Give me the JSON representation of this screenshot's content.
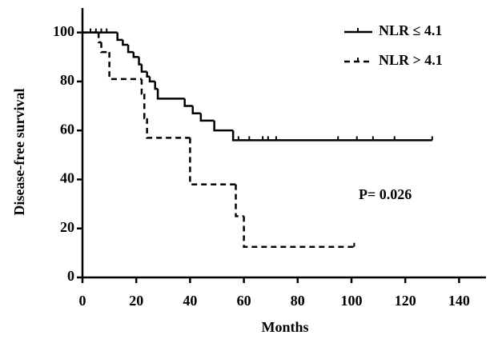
{
  "chart_data": {
    "type": "step",
    "xlabel": "Months",
    "ylabel": "Disease-free survival",
    "xlim": [
      0,
      150
    ],
    "ylim": [
      0,
      110
    ],
    "xticks": [
      0,
      20,
      40,
      60,
      80,
      100,
      120,
      140
    ],
    "yticks": [
      0,
      20,
      40,
      60,
      80,
      100
    ],
    "annotation": "P= 0.026",
    "legend": "top-right",
    "series": [
      {
        "name": "NLR ≤ 4.1",
        "color": "#000000",
        "dash": false,
        "x": [
          0,
          13,
          15,
          17,
          19,
          21,
          22,
          24,
          25,
          27,
          28,
          38,
          41,
          44,
          49,
          56,
          130
        ],
        "values": [
          100,
          97,
          95,
          92,
          90,
          87,
          84,
          82,
          80,
          77,
          73,
          70,
          67,
          64,
          60,
          56,
          56
        ],
        "censor_x": [
          3,
          5,
          7,
          9,
          58,
          62,
          67,
          69,
          72,
          95,
          102,
          108,
          116,
          130
        ],
        "censor_y": [
          100,
          100,
          100,
          100,
          56,
          56,
          56,
          56,
          56,
          56,
          56,
          56,
          56,
          56
        ]
      },
      {
        "name": "NLR > 4.1",
        "color": "#000000",
        "dash": true,
        "x": [
          0,
          6,
          7,
          10,
          22,
          23,
          24,
          40,
          57,
          60,
          101
        ],
        "values": [
          100,
          96,
          92,
          81,
          75,
          65,
          57,
          38,
          25,
          12.5,
          12.5
        ],
        "censor_x": [
          101
        ],
        "censor_y": [
          12.5
        ]
      }
    ]
  }
}
